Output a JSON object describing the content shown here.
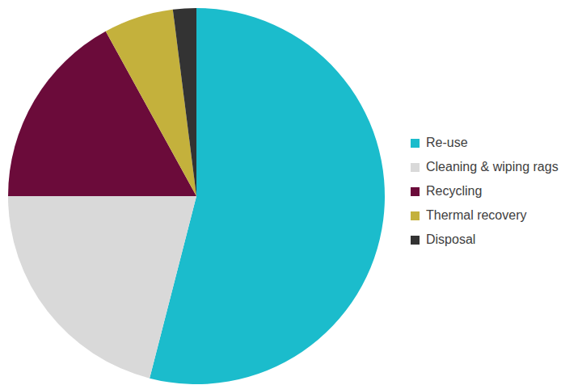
{
  "chart_data": {
    "type": "pie",
    "categories": [
      "Re-use",
      "Cleaning & wiping rags",
      "Recycling",
      "Thermal recovery",
      "Disposal"
    ],
    "values": [
      54,
      21,
      17,
      6,
      2
    ],
    "colors": [
      "#1bbccc",
      "#d9d9d9",
      "#6b0b3a",
      "#c4b13c",
      "#333333"
    ],
    "legend": "right"
  }
}
